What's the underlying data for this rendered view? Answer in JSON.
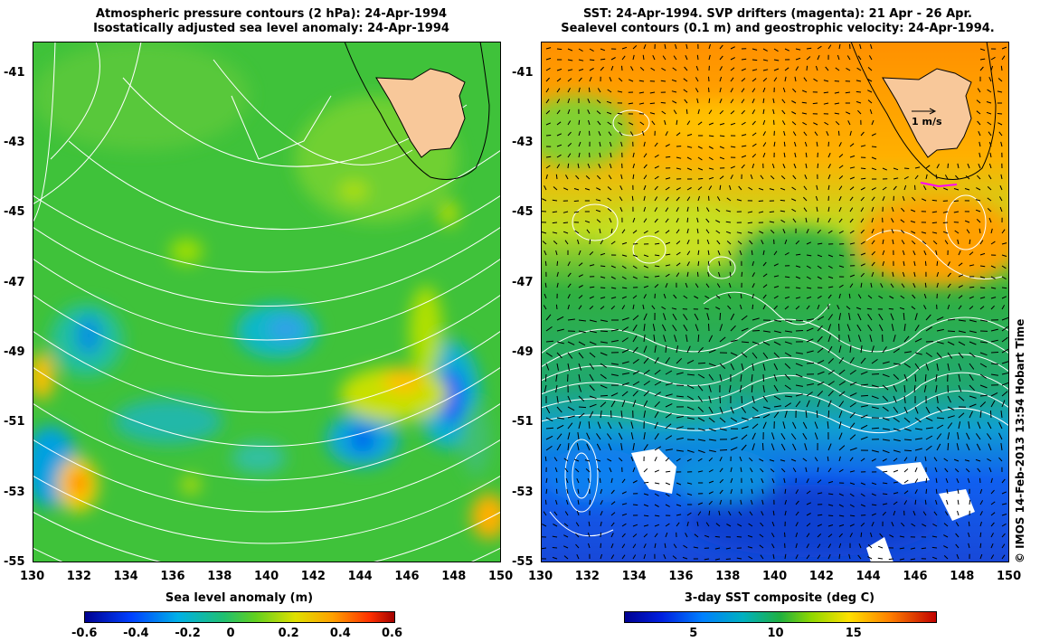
{
  "left_panel": {
    "title_line1": "Atmospheric pressure contours (2 hPa): 24-Apr-1994",
    "title_line2": "Isostatically adjusted sea level anomaly: 24-Apr-1994",
    "colorbar_title": "Sea level anomaly (m)",
    "colorbar_ticks": [
      "-0.6",
      "-0.4",
      "-0.2",
      "0",
      "0.2",
      "0.4",
      "0.6"
    ]
  },
  "right_panel": {
    "title_line1": "SST: 24-Apr-1994. SVP drifters (magenta): 21 Apr - 26 Apr.",
    "title_line2": "Sealevel contours (0.1 m) and geostrophic velocity: 24-Apr-1994.",
    "vector_scale_label": "1 m/s",
    "colorbar_title": "3-day SST composite (deg C)",
    "colorbar_ticks": [
      "5",
      "10",
      "15"
    ]
  },
  "axes": {
    "x_ticks": [
      "130",
      "132",
      "134",
      "136",
      "138",
      "140",
      "142",
      "144",
      "146",
      "148",
      "150"
    ],
    "y_ticks": [
      "-41",
      "-43",
      "-45",
      "-47",
      "-49",
      "-51",
      "-53",
      "-55"
    ],
    "lon_range": [
      130,
      150
    ],
    "lat_range": [
      -55,
      -40.1
    ]
  },
  "credit": "© IMOS 14-Feb-2013 13:54 Hobart Time",
  "colors": {
    "land": "#f8c89a",
    "sla_cmap": [
      "#00008f",
      "#0050ff",
      "#00c8d8",
      "#20c060",
      "#7ed800",
      "#ffd000",
      "#ff6000",
      "#a00000"
    ],
    "sst_cmap": [
      "#000090",
      "#0040ff",
      "#00a0e0",
      "#00b070",
      "#20c040",
      "#a0e000",
      "#ffd000",
      "#ff8000",
      "#c00000"
    ]
  }
}
